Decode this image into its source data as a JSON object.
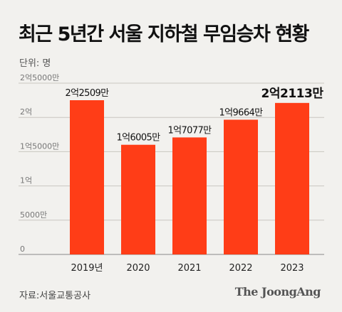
{
  "title": "최근 5년간 서울 지하철 무임승차 현황",
  "unit_label": "단위: 명",
  "source": "자료:서울교통공사",
  "logo_text": "The JoongAng",
  "colors": {
    "bar": "#ff3d17",
    "grid": "#c9c6c0",
    "background": "#f2f1ee"
  },
  "chart_data": {
    "type": "bar",
    "title": "최근 5년간 서울 지하철 무임승차 현황",
    "xlabel": "",
    "ylabel": "단위: 명",
    "categories": [
      "2019년",
      "2020",
      "2021",
      "2022",
      "2023"
    ],
    "values": [
      225090000,
      160050000,
      170770000,
      196640000,
      221130000
    ],
    "data_labels": [
      "2억2509만",
      "1억6005만",
      "1억7077만",
      "1억9664만",
      "2억2113만"
    ],
    "highlight_index": 4,
    "ylim": [
      0,
      250000000
    ],
    "yticks": [
      {
        "value": 0,
        "label": "0"
      },
      {
        "value": 50000000,
        "label": "5000만"
      },
      {
        "value": 100000000,
        "label": "1억"
      },
      {
        "value": 150000000,
        "label": "1억5000만"
      },
      {
        "value": 200000000,
        "label": "2억"
      },
      {
        "value": 250000000,
        "label": "2억5000만"
      }
    ],
    "grid": true,
    "legend": "none"
  }
}
